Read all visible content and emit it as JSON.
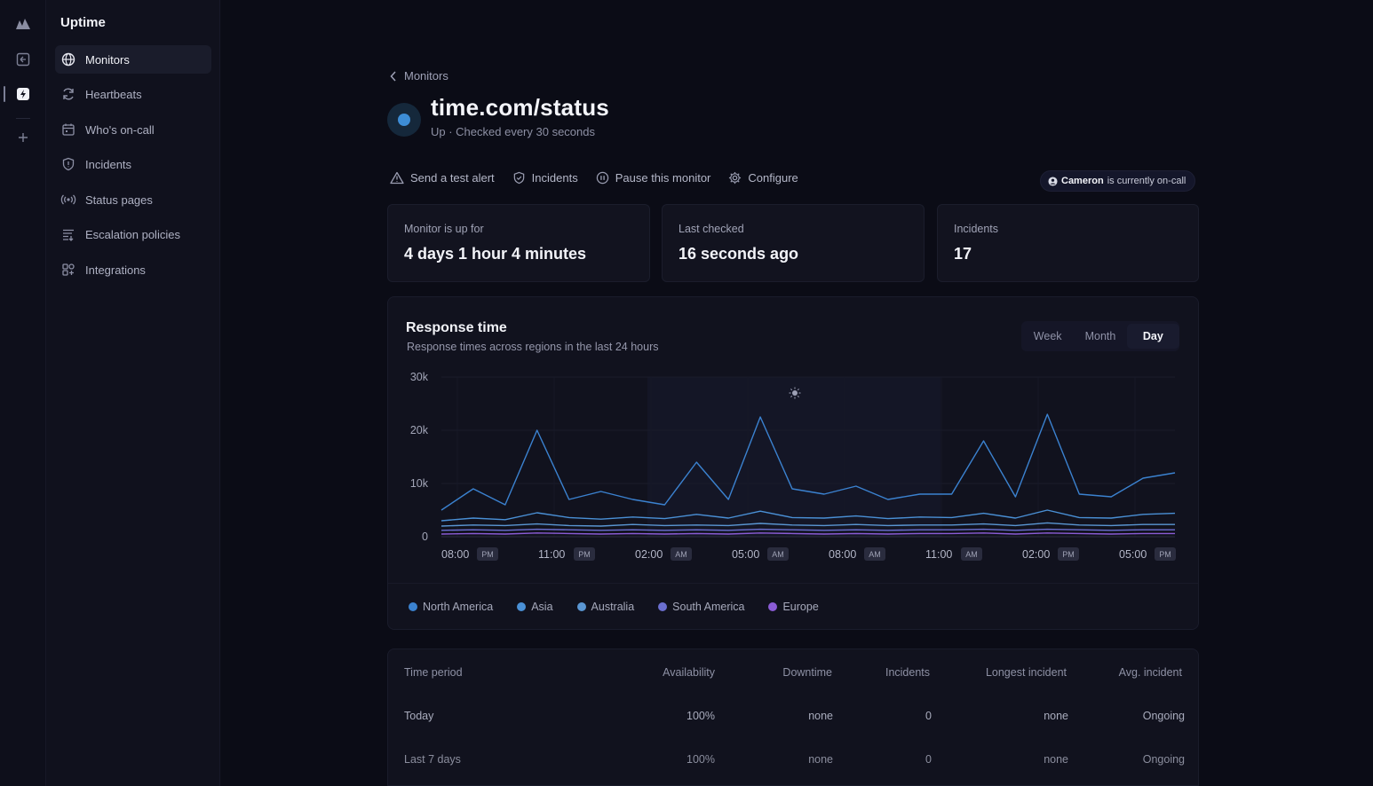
{
  "app": {
    "title": "Uptime"
  },
  "rail": {
    "items": [
      "logo-icon",
      "status-icon",
      "uptime-app-icon",
      "add-icon"
    ]
  },
  "sidebar": {
    "items": [
      {
        "label": "Monitors",
        "icon": "globe-icon",
        "active": true
      },
      {
        "label": "Heartbeats",
        "icon": "refresh-icon",
        "active": false
      },
      {
        "label": "Who's on-call",
        "icon": "calendar-icon",
        "active": false
      },
      {
        "label": "Incidents",
        "icon": "shield-icon",
        "active": false
      },
      {
        "label": "Status pages",
        "icon": "broadcast-icon",
        "active": false
      },
      {
        "label": "Escalation policies",
        "icon": "list-icon",
        "active": false
      },
      {
        "label": "Integrations",
        "icon": "grid-icon",
        "active": false
      }
    ]
  },
  "header": {
    "breadcrumb": "Monitors",
    "title": "time.com/status",
    "subtitle": "Up · Checked every 30 seconds",
    "status_color": "#3d8dd6"
  },
  "actions": {
    "send_test_alert": "Send a test alert",
    "incidents": "Incidents",
    "pause": "Pause this monitor",
    "configure": "Configure"
  },
  "oncall": {
    "name": "Cameron",
    "text": "is currently on-call"
  },
  "stats": [
    {
      "label": "Monitor is up for",
      "value": "4 days 1 hour 4 minutes"
    },
    {
      "label": "Last checked",
      "value": "16 seconds ago"
    },
    {
      "label": "Incidents",
      "value": "17"
    }
  ],
  "response": {
    "title": "Response time",
    "subtitle": "Response times across regions in the last 24 hours",
    "periods": [
      {
        "label": "Week",
        "active": false
      },
      {
        "label": "Month",
        "active": false
      },
      {
        "label": "Day",
        "active": true
      }
    ]
  },
  "chart_data": {
    "type": "line",
    "ylim": [
      0,
      30000
    ],
    "yticks": [
      "30k",
      "20k",
      "10k",
      "0"
    ],
    "ytick_values": [
      30000,
      20000,
      10000,
      0
    ],
    "xticks": [
      {
        "time": "08:00",
        "ampm": "PM"
      },
      {
        "time": "11:00",
        "ampm": "PM"
      },
      {
        "time": "02:00",
        "ampm": "AM"
      },
      {
        "time": "05:00",
        "ampm": "AM"
      },
      {
        "time": "08:00",
        "ampm": "AM"
      },
      {
        "time": "11:00",
        "ampm": "AM"
      },
      {
        "time": "02:00",
        "ampm": "PM"
      },
      {
        "time": "05:00",
        "ampm": "PM"
      }
    ],
    "x_hours": [
      0,
      1,
      2,
      3,
      4,
      5,
      6,
      7,
      8,
      9,
      10,
      11,
      12,
      13,
      14,
      15,
      16,
      17,
      18,
      19,
      20,
      21,
      22,
      23
    ],
    "series": [
      {
        "name": "North America",
        "color": "#3b82d0",
        "values": [
          5000,
          9000,
          6000,
          20000,
          7000,
          8500,
          7000,
          6000,
          14000,
          7000,
          22500,
          9000,
          8000,
          9500,
          7000,
          8000,
          8000,
          18000,
          7500,
          23000,
          8000,
          7500,
          11000,
          12000
        ]
      },
      {
        "name": "Asia",
        "color": "#4a90d6",
        "values": [
          3000,
          3500,
          3200,
          4500,
          3600,
          3300,
          3700,
          3400,
          4200,
          3500,
          4800,
          3600,
          3500,
          3900,
          3400,
          3700,
          3600,
          4400,
          3500,
          5000,
          3600,
          3500,
          4200,
          4400
        ]
      },
      {
        "name": "Australia",
        "color": "#5a96d2",
        "values": [
          2000,
          2200,
          2100,
          2400,
          2100,
          2000,
          2300,
          2100,
          2200,
          2100,
          2500,
          2200,
          2100,
          2300,
          2100,
          2200,
          2200,
          2400,
          2100,
          2600,
          2200,
          2100,
          2300,
          2300
        ]
      },
      {
        "name": "South America",
        "color": "#6b6fd0",
        "values": [
          1200,
          1300,
          1200,
          1400,
          1300,
          1200,
          1300,
          1200,
          1300,
          1200,
          1400,
          1300,
          1200,
          1300,
          1200,
          1300,
          1300,
          1400,
          1200,
          1400,
          1300,
          1200,
          1300,
          1300
        ]
      },
      {
        "name": "Europe",
        "color": "#8b5cd6",
        "values": [
          500,
          600,
          500,
          700,
          600,
          500,
          600,
          500,
          600,
          500,
          700,
          600,
          500,
          600,
          500,
          600,
          600,
          700,
          500,
          700,
          600,
          500,
          600,
          600
        ]
      }
    ]
  },
  "table": {
    "headers": [
      "Time period",
      "Availability",
      "Downtime",
      "Incidents",
      "Longest incident",
      "Avg. incident"
    ],
    "rows": [
      [
        "Today",
        "100%",
        "none",
        "0",
        "none",
        "Ongoing"
      ],
      [
        "Last 7 days",
        "100%",
        "none",
        "0",
        "none",
        "Ongoing"
      ]
    ]
  }
}
